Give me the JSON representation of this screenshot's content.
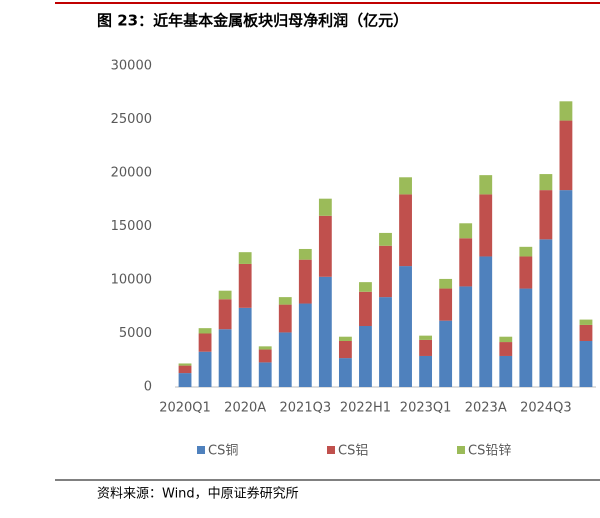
{
  "chart_data": {
    "type": "stacked_bar",
    "title": "图 23：近年基本金属板块归母净利润（亿元）",
    "source": "资料来源：Wind，中原证券研究所",
    "categories": [
      "2020Q1",
      null,
      null,
      "2020A",
      null,
      null,
      "2021Q3",
      null,
      null,
      "2022H1",
      null,
      null,
      "2023Q1",
      null,
      null,
      "2023A",
      null,
      null,
      "2024Q3",
      null,
      null
    ],
    "series": [
      {
        "name": "CS铜",
        "color": "#4f81bd",
        "values": [
          1300,
          3300,
          5400,
          7400,
          2300,
          5100,
          7800,
          10300,
          2700,
          5700,
          8400,
          11300,
          2900,
          6200,
          9400,
          12200,
          2900,
          9200,
          13800,
          18400,
          4300
        ]
      },
      {
        "name": "CS铝",
        "color": "#c0504d",
        "values": [
          700,
          1700,
          2800,
          4100,
          1200,
          2600,
          4100,
          5700,
          1600,
          3200,
          4800,
          6700,
          1500,
          3000,
          4500,
          5800,
          1300,
          3000,
          4600,
          6500,
          1500
        ]
      },
      {
        "name": "CS铅锌",
        "color": "#9bbb59",
        "values": [
          200,
          500,
          800,
          1100,
          300,
          700,
          1000,
          1600,
          400,
          900,
          1200,
          1600,
          400,
          900,
          1400,
          1800,
          500,
          900,
          1500,
          1800,
          500
        ]
      }
    ],
    "ylim": [
      0,
      30000
    ],
    "yticks": [
      0,
      5000,
      10000,
      15000,
      20000,
      25000,
      30000
    ],
    "grid": false,
    "legend": "bottom"
  }
}
